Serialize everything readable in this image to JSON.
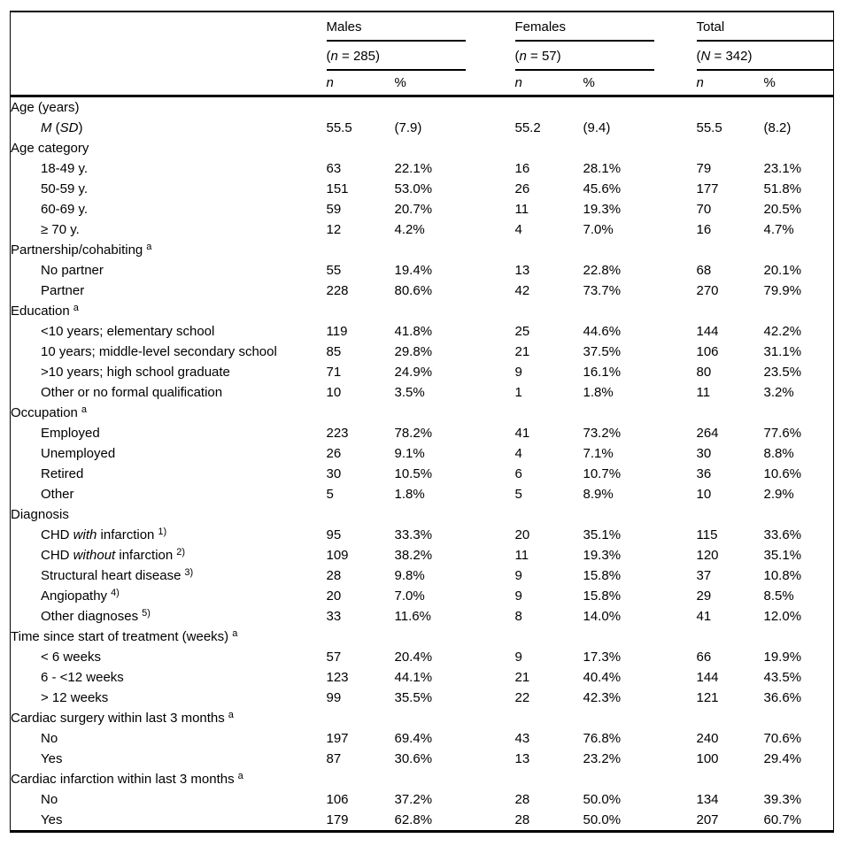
{
  "table": {
    "col_head_n": "n",
    "col_head_pct": "%",
    "groups": [
      {
        "label": "Males",
        "count_pre": "(",
        "count_italic": "n",
        "count_post": " = 285)"
      },
      {
        "label": "Females",
        "count_pre": "(",
        "count_italic": "n",
        "count_post": " = 57)"
      },
      {
        "label": "Total",
        "count_pre": "(",
        "count_italic": "N",
        "count_post": " = 342)"
      }
    ],
    "rows": [
      {
        "indent": 0,
        "parts": [
          {
            "t": "Age (years)"
          }
        ],
        "cells": []
      },
      {
        "indent": 1,
        "parts": [
          {
            "t": "M",
            "em": true
          },
          {
            "t": " ("
          },
          {
            "t": "SD",
            "em": true
          },
          {
            "t": ")"
          }
        ],
        "cells": [
          "55.5",
          "(7.9)",
          "55.2",
          "(9.4)",
          "55.5",
          "(8.2)"
        ]
      },
      {
        "indent": 0,
        "parts": [
          {
            "t": "Age category"
          }
        ],
        "cells": []
      },
      {
        "indent": 1,
        "parts": [
          {
            "t": "18-49 y."
          }
        ],
        "cells": [
          "63",
          "22.1%",
          "16",
          "28.1%",
          "79",
          "23.1%"
        ]
      },
      {
        "indent": 1,
        "parts": [
          {
            "t": "50-59 y."
          }
        ],
        "cells": [
          "151",
          "53.0%",
          "26",
          "45.6%",
          "177",
          "51.8%"
        ]
      },
      {
        "indent": 1,
        "parts": [
          {
            "t": "60-69 y."
          }
        ],
        "cells": [
          "59",
          "20.7%",
          "11",
          "19.3%",
          "70",
          "20.5%"
        ]
      },
      {
        "indent": 1,
        "parts": [
          {
            "t": "≥ 70 y."
          }
        ],
        "cells": [
          "12",
          "4.2%",
          "4",
          "7.0%",
          "16",
          "4.7%"
        ]
      },
      {
        "indent": 0,
        "parts": [
          {
            "t": "Partnership/cohabiting"
          }
        ],
        "sup": "a",
        "cells": []
      },
      {
        "indent": 1,
        "parts": [
          {
            "t": "No partner"
          }
        ],
        "cells": [
          "55",
          "19.4%",
          "13",
          "22.8%",
          "68",
          "20.1%"
        ]
      },
      {
        "indent": 1,
        "parts": [
          {
            "t": "Partner"
          }
        ],
        "cells": [
          "228",
          "80.6%",
          "42",
          "73.7%",
          "270",
          "79.9%"
        ]
      },
      {
        "indent": 0,
        "parts": [
          {
            "t": "Education"
          }
        ],
        "sup": "a",
        "cells": []
      },
      {
        "indent": 1,
        "parts": [
          {
            "t": "<10 years; elementary school"
          }
        ],
        "cells": [
          "119",
          "41.8%",
          "25",
          "44.6%",
          "144",
          "42.2%"
        ]
      },
      {
        "indent": 1,
        "parts": [
          {
            "t": "10 years; middle-level secondary school"
          }
        ],
        "cells": [
          "85",
          "29.8%",
          "21",
          "37.5%",
          "106",
          "31.1%"
        ]
      },
      {
        "indent": 1,
        "parts": [
          {
            "t": ">10 years; high school graduate"
          }
        ],
        "cells": [
          "71",
          "24.9%",
          "9",
          "16.1%",
          "80",
          "23.5%"
        ]
      },
      {
        "indent": 1,
        "parts": [
          {
            "t": "Other or no formal qualification"
          }
        ],
        "cells": [
          "10",
          "3.5%",
          "1",
          "1.8%",
          "11",
          "3.2%"
        ]
      },
      {
        "indent": 0,
        "parts": [
          {
            "t": "Occupation"
          }
        ],
        "sup": "a",
        "cells": []
      },
      {
        "indent": 1,
        "parts": [
          {
            "t": "Employed"
          }
        ],
        "cells": [
          "223",
          "78.2%",
          "41",
          "73.2%",
          "264",
          "77.6%"
        ]
      },
      {
        "indent": 1,
        "parts": [
          {
            "t": "Unemployed"
          }
        ],
        "cells": [
          "26",
          "9.1%",
          "4",
          "7.1%",
          "30",
          "8.8%"
        ]
      },
      {
        "indent": 1,
        "parts": [
          {
            "t": "Retired"
          }
        ],
        "cells": [
          "30",
          "10.5%",
          "6",
          "10.7%",
          "36",
          "10.6%"
        ]
      },
      {
        "indent": 1,
        "parts": [
          {
            "t": "Other"
          }
        ],
        "cells": [
          "5",
          "1.8%",
          "5",
          "8.9%",
          "10",
          "2.9%"
        ]
      },
      {
        "indent": 0,
        "parts": [
          {
            "t": "Diagnosis"
          }
        ],
        "cells": []
      },
      {
        "indent": 1,
        "parts": [
          {
            "t": "CHD "
          },
          {
            "t": "with",
            "em": true
          },
          {
            "t": " infarction"
          }
        ],
        "sup": "1)",
        "cells": [
          "95",
          "33.3%",
          "20",
          "35.1%",
          "115",
          "33.6%"
        ]
      },
      {
        "indent": 1,
        "parts": [
          {
            "t": "CHD "
          },
          {
            "t": "without",
            "em": true
          },
          {
            "t": " infarction"
          }
        ],
        "sup": "2)",
        "cells": [
          "109",
          "38.2%",
          "11",
          "19.3%",
          "120",
          "35.1%"
        ]
      },
      {
        "indent": 1,
        "parts": [
          {
            "t": "Structural heart disease"
          }
        ],
        "sup": "3)",
        "cells": [
          "28",
          "9.8%",
          "9",
          "15.8%",
          "37",
          "10.8%"
        ]
      },
      {
        "indent": 1,
        "parts": [
          {
            "t": "Angiopathy"
          }
        ],
        "sup": "4)",
        "cells": [
          "20",
          "7.0%",
          "9",
          "15.8%",
          "29",
          "8.5%"
        ]
      },
      {
        "indent": 1,
        "parts": [
          {
            "t": "Other diagnoses"
          }
        ],
        "sup": "5)",
        "cells": [
          "33",
          "11.6%",
          "8",
          "14.0%",
          "41",
          "12.0%"
        ]
      },
      {
        "indent": 0,
        "parts": [
          {
            "t": "Time since start of treatment (weeks)"
          }
        ],
        "sup": "a",
        "cells": []
      },
      {
        "indent": 1,
        "parts": [
          {
            "t": "< 6 weeks"
          }
        ],
        "cells": [
          "57",
          "20.4%",
          "9",
          "17.3%",
          "66",
          "19.9%"
        ]
      },
      {
        "indent": 1,
        "parts": [
          {
            "t": "6 - <12 weeks"
          }
        ],
        "cells": [
          "123",
          "44.1%",
          "21",
          "40.4%",
          "144",
          "43.5%"
        ]
      },
      {
        "indent": 1,
        "parts": [
          {
            "t": "> 12 weeks"
          }
        ],
        "cells": [
          "99",
          "35.5%",
          "22",
          "42.3%",
          "121",
          "36.6%"
        ]
      },
      {
        "indent": 0,
        "parts": [
          {
            "t": "Cardiac surgery within last 3 months"
          }
        ],
        "sup": "a",
        "cells": []
      },
      {
        "indent": 1,
        "parts": [
          {
            "t": "No"
          }
        ],
        "cells": [
          "197",
          "69.4%",
          "43",
          "76.8%",
          "240",
          "70.6%"
        ]
      },
      {
        "indent": 1,
        "parts": [
          {
            "t": "Yes"
          }
        ],
        "cells": [
          "87",
          "30.6%",
          "13",
          "23.2%",
          "100",
          "29.4%"
        ]
      },
      {
        "indent": 0,
        "parts": [
          {
            "t": "Cardiac infarction within last 3 months"
          }
        ],
        "sup": "a",
        "cells": []
      },
      {
        "indent": 1,
        "parts": [
          {
            "t": "No"
          }
        ],
        "cells": [
          "106",
          "37.2%",
          "28",
          "50.0%",
          "134",
          "39.3%"
        ]
      },
      {
        "indent": 1,
        "parts": [
          {
            "t": "Yes"
          }
        ],
        "cells": [
          "179",
          "62.8%",
          "28",
          "50.0%",
          "207",
          "60.7%"
        ]
      }
    ]
  }
}
